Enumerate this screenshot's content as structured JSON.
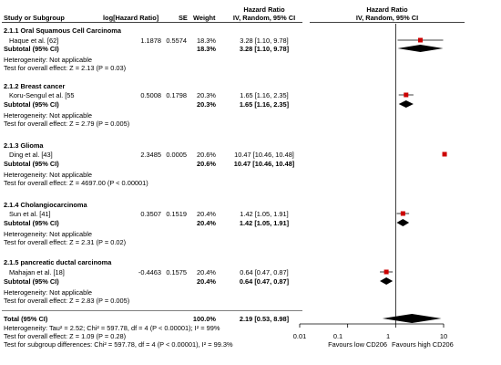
{
  "header": {
    "col_study": "Study or Subgroup",
    "col_loghr": "log[Hazard Ratio]",
    "col_se": "SE",
    "col_weight": "Weight",
    "col_hr_title": "Hazard Ratio",
    "col_hr_method": "IV, Random, 95% CI",
    "plot_hr_title": "Hazard Ratio",
    "plot_hr_method": "IV, Random, 95% CI"
  },
  "groups": [
    {
      "title": "2.1.1 Oral Squamous Cell Carcinoma",
      "study": {
        "name": "Haque et al. [62]",
        "loghr": "1.1878",
        "se": "0.5574",
        "weight": "18.3%",
        "ci": "3.28 [1.10, 9.78]"
      },
      "subtotal": {
        "label": "Subtotal (95% CI)",
        "weight": "18.3%",
        "ci": "3.28 [1.10, 9.78]"
      },
      "heterogeneity": "Heterogeneity: Not applicable",
      "overall": "Test for overall effect: Z = 2.13 (P = 0.03)"
    },
    {
      "title": "2.1.2 Breast cancer",
      "study": {
        "name": "Koru-Sengul et al. [55",
        "loghr": "0.5008",
        "se": "0.1798",
        "weight": "20.3%",
        "ci": "1.65 [1.16, 2.35]"
      },
      "subtotal": {
        "label": "Subtotal (95% CI)",
        "weight": "20.3%",
        "ci": "1.65 [1.16, 2.35]"
      },
      "heterogeneity": "Heterogeneity: Not applicable",
      "overall": "Test for overall effect: Z = 2.79 (P = 0.005)"
    },
    {
      "title": "2.1.3 Glioma",
      "study": {
        "name": "Ding et al. [43]",
        "loghr": "2.3485",
        "se": "0.0005",
        "weight": "20.6%",
        "ci": "10.47 [10.46, 10.48]"
      },
      "subtotal": {
        "label": "Subtotal (95% CI)",
        "weight": "20.6%",
        "ci": "10.47 [10.46, 10.48]"
      },
      "heterogeneity": "Heterogeneity: Not applicable",
      "overall": "Test for overall effect: Z = 4697.00 (P < 0.00001)"
    },
    {
      "title": "2.1.4 Cholangiocarcinoma",
      "study": {
        "name": "Sun et al. [41]",
        "loghr": "0.3507",
        "se": "0.1519",
        "weight": "20.4%",
        "ci": "1.42 [1.05, 1.91]"
      },
      "subtotal": {
        "label": "Subtotal (95% CI)",
        "weight": "20.4%",
        "ci": "1.42 [1.05, 1.91]"
      },
      "heterogeneity": "Heterogeneity: Not applicable",
      "overall": "Test for overall effect: Z = 2.31 (P = 0.02)"
    },
    {
      "title": "2.1.5 pancreatic ductal carcinoma",
      "study": {
        "name": "Mahajan et al. [18]",
        "loghr": "-0.4463",
        "se": "0.1575",
        "weight": "20.4%",
        "ci": "0.64 [0.47, 0.87]"
      },
      "subtotal": {
        "label": "Subtotal (95% CI)",
        "weight": "20.4%",
        "ci": "0.64 [0.47, 0.87]"
      },
      "heterogeneity": "Heterogeneity: Not applicable",
      "overall": "Test for overall effect: Z = 2.83 (P = 0.005)"
    }
  ],
  "total": {
    "label": "Total (95% CI)",
    "weight": "100.0%",
    "ci": "2.19 [0.53, 8.98]",
    "heterogeneity": "Heterogeneity: Tau² = 2.52; Chi² = 597.78, df = 4 (P < 0.00001); I² = 99%",
    "overall": "Test for overall effect: Z = 1.09 (P = 0.28)",
    "subgroup": "Test for subgroup differences: Chi² = 597.78, df = 4 (P < 0.00001), I² = 99.3%"
  },
  "chart_data": {
    "type": "forest",
    "scale": "log",
    "xlim": [
      0.01,
      10
    ],
    "ticks": [
      0.01,
      0.1,
      1,
      10
    ],
    "tick_labels": [
      "0.01",
      "0.1",
      "1",
      "10"
    ],
    "left_label": "Favours low CD206",
    "right_label": "Favours high CD206",
    "colors": {
      "study": "#cc0000",
      "diamond": "#000000",
      "axis": "#000000"
    },
    "studies": [
      {
        "hr": 3.28,
        "lo": 1.1,
        "hi": 9.78
      },
      {
        "hr": 1.65,
        "lo": 1.16,
        "hi": 2.35
      },
      {
        "hr": 10.47,
        "lo": 10.46,
        "hi": 10.48
      },
      {
        "hr": 1.42,
        "lo": 1.05,
        "hi": 1.91
      },
      {
        "hr": 0.64,
        "lo": 0.47,
        "hi": 0.87
      }
    ],
    "subtotals": [
      {
        "hr": 3.28,
        "lo": 1.1,
        "hi": 9.78
      },
      {
        "hr": 1.65,
        "lo": 1.16,
        "hi": 2.35
      },
      {
        "hr": 10.47,
        "lo": 10.46,
        "hi": 10.48
      },
      {
        "hr": 1.42,
        "lo": 1.05,
        "hi": 1.91
      },
      {
        "hr": 0.64,
        "lo": 0.47,
        "hi": 0.87
      }
    ],
    "total": {
      "hr": 2.19,
      "lo": 0.53,
      "hi": 8.98
    }
  }
}
